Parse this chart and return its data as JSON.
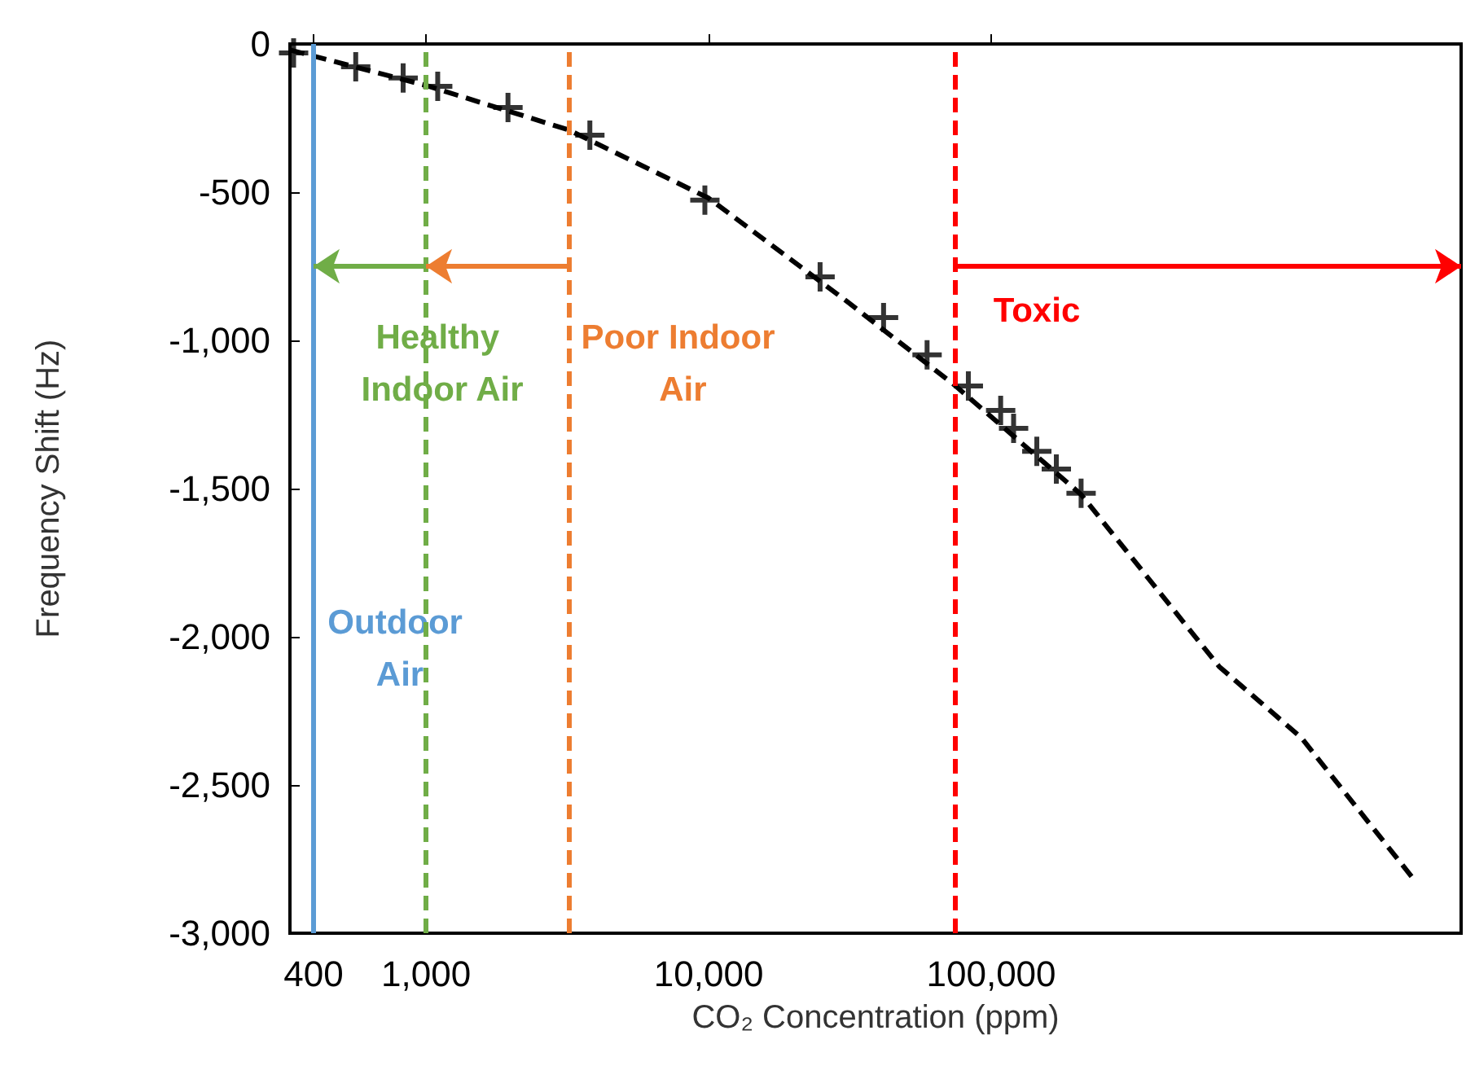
{
  "chart_data": {
    "type": "scatter",
    "xlabel": "CO₂ Concentration (ppm)",
    "ylabel": "Frequency Shift (Hz)",
    "log": "x",
    "xlim": [
      330,
      4600000
    ],
    "ylim": [
      -3000,
      0
    ],
    "xticks": [
      400,
      {
        "value": 1000,
        "label": "1,000"
      },
      {
        "value": 10000,
        "label": "10,000"
      },
      {
        "value": 100000,
        "label": "100,000"
      }
    ],
    "yticks": [
      {
        "value": -3000,
        "label": "-3,000"
      },
      {
        "value": -2500,
        "label": "-2,500"
      },
      {
        "value": -2000,
        "label": "-2,000"
      },
      {
        "value": -1500,
        "label": "-1,500"
      },
      {
        "value": -1000,
        "label": "-1,000"
      },
      -500,
      0
    ],
    "grid": false,
    "series": [
      {
        "marker": "cross",
        "color": "#000000",
        "x": [
          340,
          564,
          830,
          1100,
          1950,
          3800,
          9700,
          24800,
          41600,
          59300,
          83000,
          108000,
          120000,
          145000,
          170000,
          208000
        ],
        "values": [
          -30,
          -77,
          -115,
          -143,
          -214,
          -308,
          -527,
          -786,
          -923,
          -1049,
          -1154,
          -1236,
          -1297,
          -1374,
          -1434,
          -1516
        ]
      },
      {
        "type": "line",
        "marker": "none",
        "line_style": "dashed",
        "color": "#000000",
        "x": [
          330,
          1000,
          3200,
          10000,
          31000,
          74000,
          208000,
          640000,
          1250000,
          3200000
        ],
        "values": [
          -20,
          -140,
          -290,
          -520,
          -870,
          -1150,
          -1520,
          -2100,
          -2340,
          -2830
        ]
      }
    ],
    "ref_lines": [
      {
        "axis": "x",
        "value": 400,
        "label": "Outdoor Air",
        "color": "#5b9bd5",
        "line_style": "solid"
      },
      {
        "axis": "x",
        "value": 1000,
        "label": "Healthy Indoor Air",
        "color": "#70ad47",
        "line_style": "dashed"
      },
      {
        "axis": "x",
        "value": 3200,
        "label": "Poor Indoor Air",
        "color": "#ed7d31",
        "line_style": "dashed"
      },
      {
        "axis": "x",
        "value": 74000,
        "label": "Toxic",
        "color": "#ff0000",
        "line_style": "dashed"
      }
    ]
  }
}
